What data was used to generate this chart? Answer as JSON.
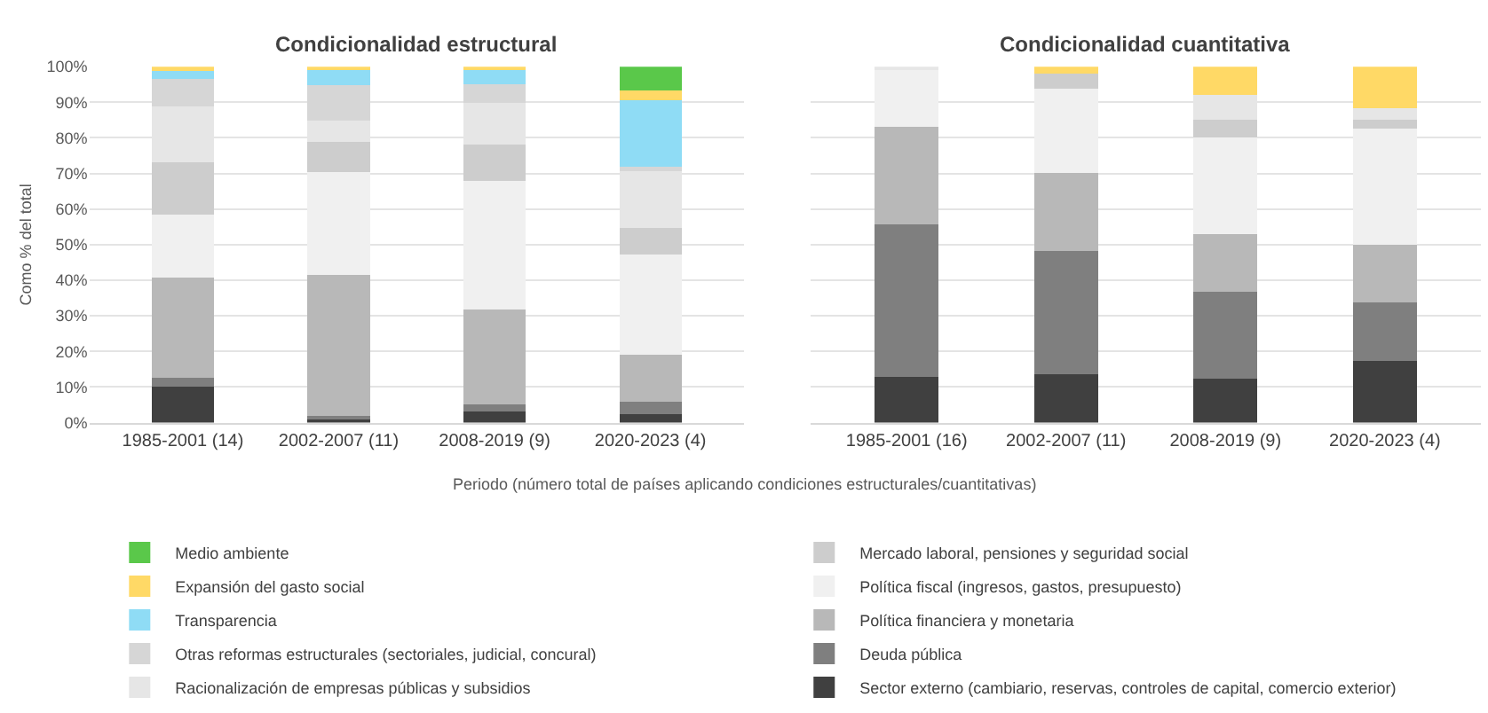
{
  "chart_data": [
    {
      "type": "bar",
      "stacked": true,
      "title": "Condicionalidad estructural",
      "ylabel": "Como % del total",
      "xlabel": "Periodo (número total de países aplicando condiciones estructurales/cuantitativas)",
      "categories": [
        "1985-2001 (14)",
        "2002-2007 (11)",
        "2008-2019 (9)",
        "2020-2023 (4)"
      ],
      "ylim": [
        0,
        100
      ],
      "yticks": [
        {
          "value": 0,
          "label": "0%"
        },
        {
          "value": 10,
          "label": "10%"
        },
        {
          "value": 20,
          "label": "20%"
        },
        {
          "value": 30,
          "label": "30%"
        },
        {
          "value": 40,
          "label": "40%"
        },
        {
          "value": 50,
          "label": "50%"
        },
        {
          "value": 60,
          "label": "60%"
        },
        {
          "value": 70,
          "label": "70%"
        },
        {
          "value": 80,
          "label": "80%"
        },
        {
          "value": 90,
          "label": "90%"
        },
        {
          "value": 100,
          "label": "100%"
        }
      ],
      "grid": "y",
      "legend": "bottom",
      "series": [
        {
          "name": "Sector externo (cambiario, reservas, controles de capital, comercio exterior)",
          "color": "#404040",
          "values": [
            10,
            1.0,
            3.2,
            2.3
          ]
        },
        {
          "name": "Deuda pública",
          "color": "#7f7f7f",
          "values": [
            2.7,
            0.9,
            1.9,
            3.5
          ]
        },
        {
          "name": "Política financiera y monetaria",
          "color": "#b8b8b8",
          "values": [
            28.1,
            39.5,
            26.6,
            13.2
          ]
        },
        {
          "name": "Política fiscal (ingresos, gastos, presupuesto)",
          "color": "#f0f0f0",
          "values": [
            17.7,
            29.1,
            36.3,
            28.1
          ]
        },
        {
          "name": "Mercado laboral, pensiones y seguridad social",
          "color": "#cdcdcd",
          "values": [
            14.6,
            8.4,
            10.2,
            7.7
          ]
        },
        {
          "name": "Racionalización de empresas públicas y subsidios",
          "color": "#e6e6e6",
          "values": [
            15.8,
            5.9,
            11.7,
            15.8
          ]
        },
        {
          "name": "Otras reformas estructurales (sectoriales, judicial, concural)",
          "color": "#d6d6d6",
          "values": [
            7.6,
            9.9,
            5.1,
            1.2
          ]
        },
        {
          "name": "Transparencia",
          "color": "#8fdcf5",
          "values": [
            2.2,
            4.3,
            4.4,
            18.7
          ]
        },
        {
          "name": "Expansión del gasto social",
          "color": "#ffd966",
          "values": [
            1.3,
            1.0,
            0.6,
            2.9
          ]
        },
        {
          "name": "Medio ambiente",
          "color": "#5ac84a",
          "values": [
            0,
            0,
            0,
            6.6
          ]
        }
      ]
    },
    {
      "type": "bar",
      "stacked": true,
      "title": "Condicionalidad cuantitativa",
      "categories": [
        "1985-2001 (16)",
        "2002-2007 (11)",
        "2008-2019 (9)",
        "2020-2023 (4)"
      ],
      "ylim": [
        0,
        100
      ],
      "yticks": [
        0,
        10,
        20,
        30,
        40,
        50,
        60,
        70,
        80,
        90,
        100
      ],
      "tick_labels": "x",
      "grid": "y",
      "series": [
        {
          "color": "#404040",
          "values": [
            12.9,
            13.6,
            12.4,
            17.3
          ]
        },
        {
          "color": "#7f7f7f",
          "values": [
            42.7,
            34.6,
            24.4,
            16.5
          ]
        },
        {
          "color": "#b8b8b8",
          "values": [
            27.4,
            22,
            16.1,
            16.2
          ]
        },
        {
          "color": "#f0f0f0",
          "values": [
            16.4,
            23.7,
            27.2,
            32.6
          ]
        },
        {
          "color": "#cdcdcd",
          "values": [
            0,
            4.1,
            5,
            2.5
          ]
        },
        {
          "color": "#e6e6e6",
          "values": [
            0.6,
            0,
            7,
            3.1
          ]
        },
        {
          "color": "#d6d6d6",
          "values": [
            0,
            0,
            0,
            0
          ]
        },
        {
          "color": "#8fdcf5",
          "values": [
            0,
            0,
            0,
            0
          ]
        },
        {
          "color": "#ffd966",
          "values": [
            0,
            2.0,
            7.9,
            11.8
          ]
        },
        {
          "color": "#5ac84a",
          "values": [
            0,
            0,
            0,
            0
          ]
        }
      ]
    }
  ]
}
